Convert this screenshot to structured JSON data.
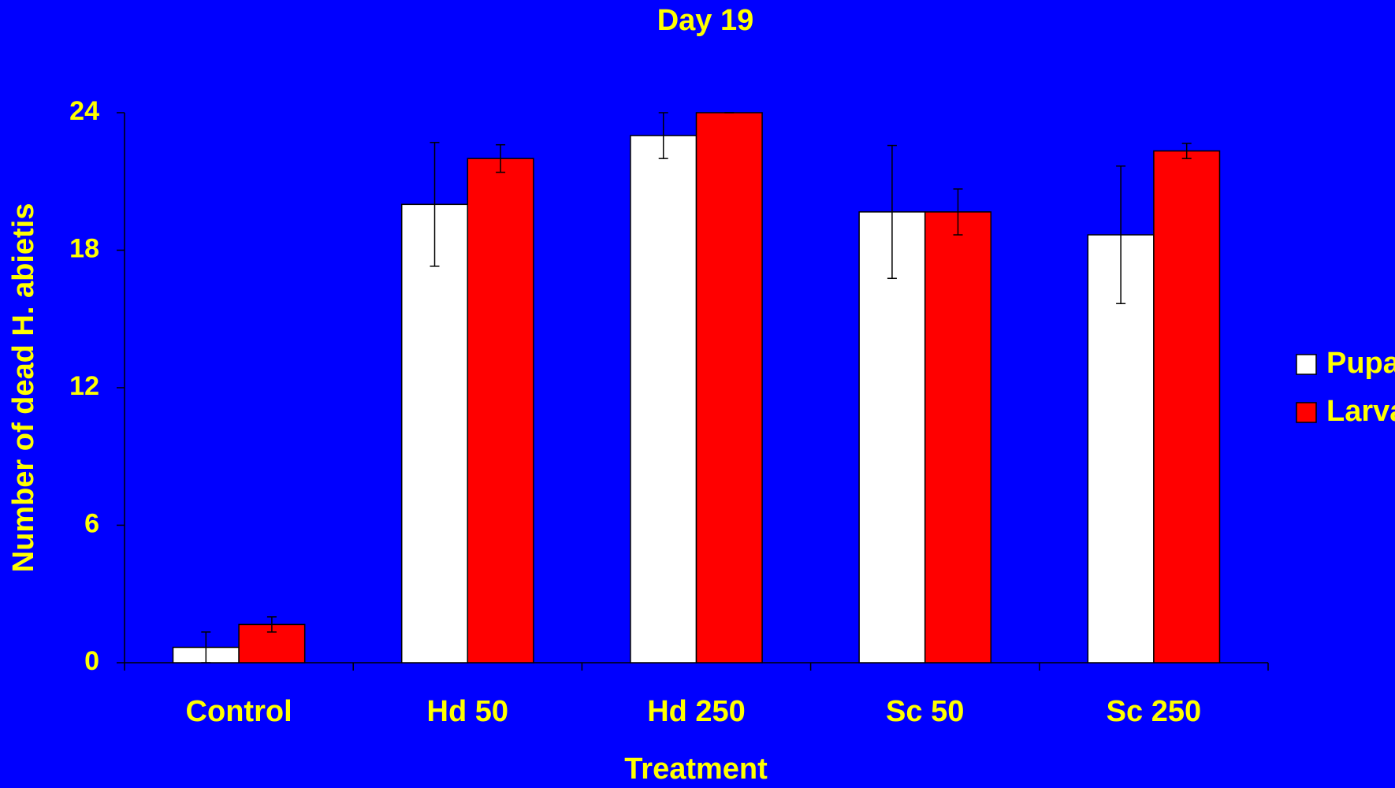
{
  "chart_data": {
    "type": "bar",
    "title": "Day 19",
    "x_label": "Treatment",
    "y_label": "Number of dead H. abietis",
    "categories": [
      "Control",
      "Hd 50",
      "Hd 250",
      "Sc 50",
      "Sc 250"
    ],
    "series": [
      {
        "name": "Pupae",
        "color": "#ffffff",
        "values": [
          0.67,
          20,
          23,
          19.67,
          18.67
        ],
        "errors": [
          0.67,
          2.7,
          1,
          2.9,
          3
        ]
      },
      {
        "name": "Larvae",
        "color": "#ff0000",
        "values": [
          1.67,
          22,
          24,
          19.67,
          22.33
        ],
        "errors": [
          0.33,
          0.6,
          0,
          1,
          0.33
        ]
      }
    ],
    "ylim": [
      0,
      24
    ],
    "yticks": [
      0,
      6,
      12,
      18,
      24
    ],
    "grid": false,
    "legend": "right"
  }
}
